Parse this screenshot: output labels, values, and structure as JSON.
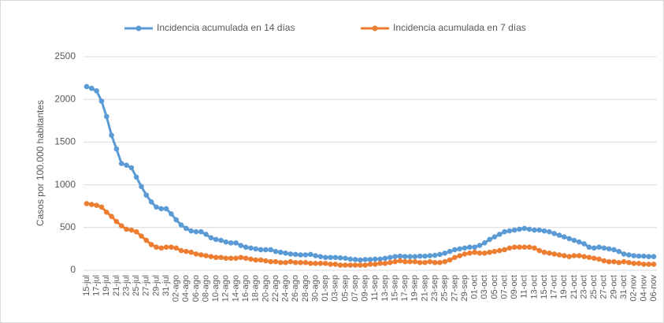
{
  "chart_data": {
    "type": "line",
    "y_label": "Casos por 100.000 habitantes",
    "categories": [
      "15-jul",
      null,
      "17-jul",
      null,
      "19-jul",
      null,
      "21-jul",
      null,
      "23-jul",
      null,
      "25-jul",
      null,
      "27-jul",
      null,
      "29-jul",
      null,
      "31-jul",
      null,
      "02-ago",
      null,
      "04-ago",
      null,
      "06-ago",
      null,
      "08-ago",
      null,
      "10-ago",
      null,
      "12-ago",
      null,
      "14-ago",
      null,
      "16-ago",
      null,
      "18-ago",
      null,
      "20-ago",
      null,
      "22-ago",
      null,
      "24-ago",
      null,
      "26-ago",
      null,
      "28-ago",
      null,
      "30-ago",
      null,
      "01-sep",
      null,
      "03-sep",
      null,
      "05-sep",
      null,
      "07-sep",
      null,
      "09-sep",
      null,
      "11-sep",
      null,
      "13-sep",
      null,
      "15-sep",
      null,
      "17-sep",
      null,
      "19-sep",
      null,
      "21-sep",
      null,
      "23-sep",
      null,
      "25-sep",
      null,
      "27-sep",
      null,
      "29-sep",
      null,
      "01-oct",
      null,
      "03-oct",
      null,
      "05-oct",
      null,
      "07-oct",
      null,
      "09-oct",
      null,
      "11-oct",
      null,
      "13-oct",
      null,
      "15-oct",
      null,
      "17-oct",
      null,
      "19-oct",
      null,
      "21-oct",
      null,
      "23-oct",
      null,
      "25-oct",
      null,
      "27-oct",
      null,
      "29-oct",
      null,
      "31-oct",
      null,
      "02-nov",
      null,
      "04-nov",
      null,
      "06-nov"
    ],
    "series": [
      {
        "name": "Incidencia acumulada en 14 días",
        "color": "#5b9bd5",
        "values": [
          2150,
          2130,
          2100,
          1980,
          1800,
          1580,
          1420,
          1250,
          1230,
          1200,
          1090,
          980,
          880,
          800,
          740,
          720,
          720,
          660,
          590,
          530,
          490,
          460,
          450,
          450,
          420,
          380,
          360,
          350,
          330,
          320,
          320,
          290,
          270,
          260,
          250,
          240,
          240,
          240,
          220,
          210,
          200,
          190,
          185,
          180,
          180,
          185,
          170,
          160,
          150,
          150,
          150,
          145,
          140,
          130,
          125,
          120,
          125,
          125,
          130,
          130,
          140,
          150,
          160,
          165,
          160,
          160,
          160,
          165,
          165,
          170,
          175,
          185,
          200,
          220,
          240,
          250,
          260,
          270,
          270,
          290,
          320,
          360,
          390,
          420,
          450,
          460,
          470,
          480,
          490,
          480,
          470,
          470,
          460,
          450,
          430,
          410,
          390,
          370,
          350,
          330,
          310,
          270,
          260,
          270,
          260,
          250,
          240,
          220,
          190,
          180,
          170,
          165,
          165,
          160,
          160
        ]
      },
      {
        "name": "Incidencia acumulada en 7 días",
        "color": "#ed7d31",
        "values": [
          780,
          770,
          760,
          740,
          680,
          630,
          570,
          520,
          480,
          470,
          450,
          400,
          350,
          300,
          270,
          260,
          270,
          270,
          260,
          230,
          220,
          210,
          190,
          180,
          170,
          160,
          150,
          150,
          140,
          140,
          140,
          150,
          140,
          130,
          120,
          120,
          110,
          100,
          100,
          90,
          90,
          100,
          90,
          90,
          90,
          80,
          80,
          80,
          80,
          70,
          70,
          60,
          60,
          60,
          60,
          60,
          60,
          70,
          70,
          80,
          80,
          90,
          100,
          110,
          100,
          100,
          100,
          90,
          90,
          100,
          90,
          90,
          100,
          120,
          150,
          170,
          190,
          200,
          210,
          200,
          200,
          210,
          220,
          230,
          240,
          260,
          270,
          270,
          270,
          270,
          260,
          230,
          210,
          200,
          190,
          180,
          170,
          160,
          170,
          170,
          160,
          150,
          140,
          130,
          110,
          100,
          100,
          90,
          100,
          90,
          80,
          80,
          70,
          70,
          70
        ]
      }
    ],
    "ylim": [
      0,
      2500
    ],
    "yticks": [
      0,
      500,
      1000,
      1500,
      2000,
      2500
    ],
    "grid": true,
    "legend": "top"
  }
}
